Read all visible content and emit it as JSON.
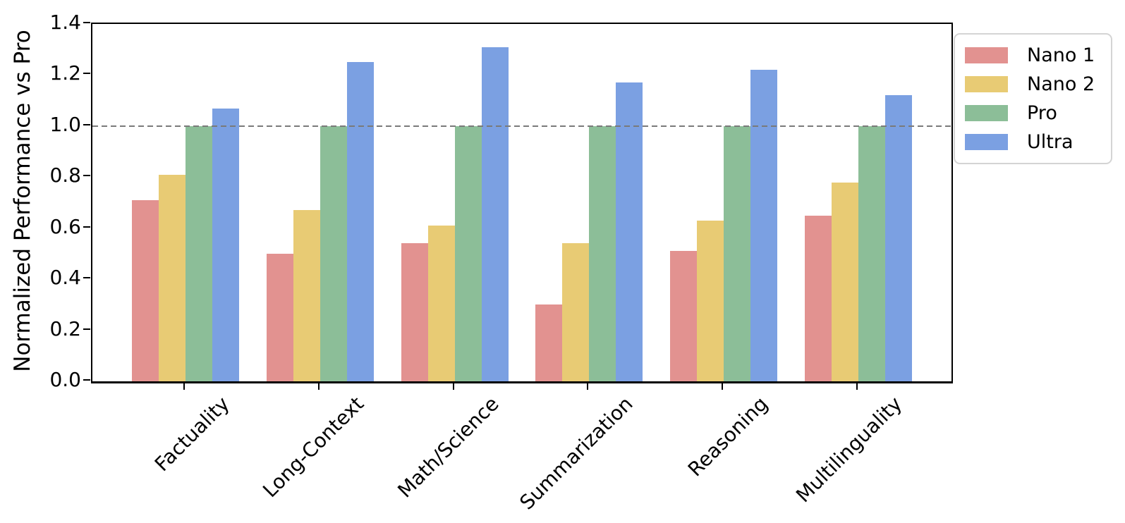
{
  "chart_data": {
    "type": "bar",
    "title": "",
    "ylabel": "Normalized Performance vs Pro",
    "xlabel": "",
    "categories": [
      "Factuality",
      "Long-Context",
      "Math/Science",
      "Summarization",
      "Reasoning",
      "Multilinguality"
    ],
    "series": [
      {
        "name": "Nano 1",
        "color": "#E29290",
        "values": [
          0.71,
          0.5,
          0.54,
          0.3,
          0.51,
          0.65
        ]
      },
      {
        "name": "Nano 2",
        "color": "#E8CB74",
        "values": [
          0.81,
          0.67,
          0.61,
          0.54,
          0.63,
          0.78
        ]
      },
      {
        "name": "Pro",
        "color": "#8CBE98",
        "values": [
          1.0,
          1.0,
          1.0,
          1.0,
          1.0,
          1.0
        ]
      },
      {
        "name": "Ultra",
        "color": "#7BA0E2",
        "values": [
          1.07,
          1.25,
          1.31,
          1.17,
          1.22,
          1.12
        ]
      }
    ],
    "ylim": [
      0.0,
      1.4
    ],
    "ytick_labels": [
      "0.0",
      "0.2",
      "0.4",
      "0.6",
      "0.8",
      "1.0",
      "1.2",
      "1.4"
    ],
    "reference_line": {
      "value": 1.0,
      "style": "dashed",
      "color": "#7a7a7a"
    },
    "legend": {
      "position": "outside-upper-right",
      "entries": [
        "Nano 1",
        "Nano 2",
        "Pro",
        "Ultra"
      ]
    },
    "grid": false,
    "axis_color": "#000000",
    "background": "#ffffff"
  }
}
